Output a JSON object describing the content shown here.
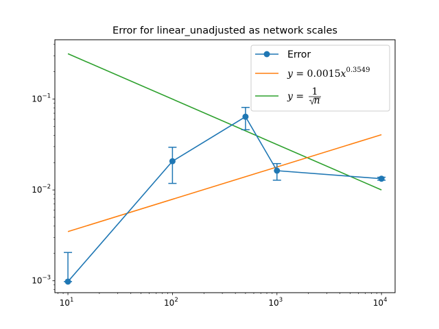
{
  "chart_data": {
    "type": "line",
    "title": "Error for linear_unadjusted as network scales",
    "xlabel": "",
    "ylabel": "",
    "xscale": "log",
    "yscale": "log",
    "xlim": [
      7.5,
      13500
    ],
    "ylim": [
      0.00074,
      0.45
    ],
    "x_ticks": [
      {
        "base": "10",
        "exp": "1"
      },
      {
        "base": "10",
        "exp": "2"
      },
      {
        "base": "10",
        "exp": "3"
      },
      {
        "base": "10",
        "exp": "4"
      }
    ],
    "y_ticks": [
      {
        "base": "10",
        "exp": "−3"
      },
      {
        "base": "10",
        "exp": "−2"
      },
      {
        "base": "10",
        "exp": "−1"
      }
    ],
    "grid": false,
    "legend_position": "top-right",
    "series": [
      {
        "name": "Error",
        "color": "#1f77b4",
        "marker": "circle",
        "errorbars": true,
        "x": [
          10,
          100,
          500,
          1000,
          10000
        ],
        "y": [
          0.00098,
          0.0207,
          0.064,
          0.0163,
          0.0133
        ],
        "y_err_low": [
          0.00098,
          0.0118,
          0.046,
          0.0128,
          0.0128
        ],
        "y_err_high": [
          0.00205,
          0.0295,
          0.081,
          0.0195,
          0.0138
        ]
      },
      {
        "name": "y = 0.0015x^0.3549",
        "color": "#ff7f0e",
        "x": [
          10,
          10000
        ],
        "y": [
          0.00348,
          0.0406
        ]
      },
      {
        "name": "y = 1/√n",
        "color": "#2ca02c",
        "x": [
          10,
          10000
        ],
        "y": [
          0.316,
          0.01
        ]
      }
    ],
    "legend": {
      "error_label": "Error",
      "fit_prefix": "y",
      "fit_eq": " = 0.0015",
      "fit_x": "x",
      "fit_exp": "0.3549",
      "sqrt_prefix": "y",
      "sqrt_eq": " = ",
      "sqrt_num": "1",
      "sqrt_den": "n"
    }
  }
}
